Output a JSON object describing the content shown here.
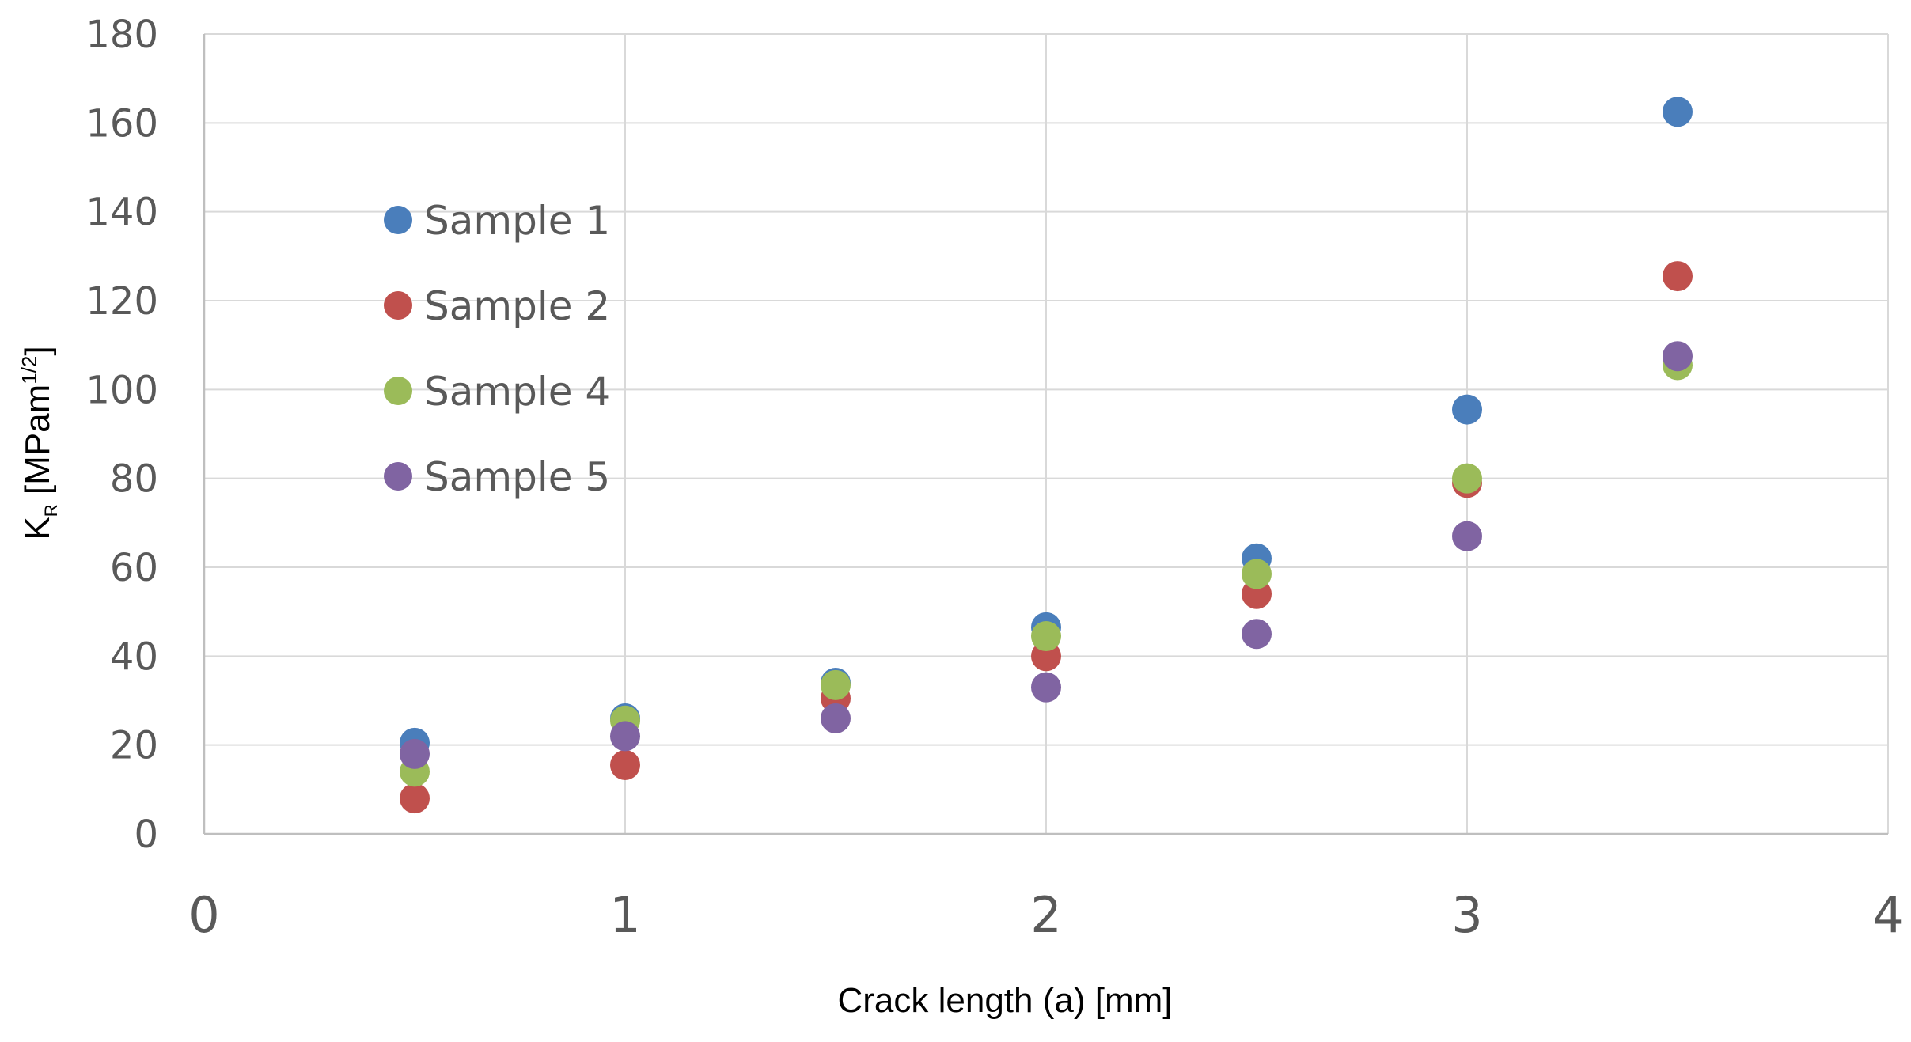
{
  "chart_data": {
    "type": "scatter",
    "xlabel": "Crack length (a) [mm]",
    "ylabel": {
      "main": "K",
      "subscript": "R",
      "unit_open": " [MPam",
      "unit_sup": "1/2",
      "unit_close": "]"
    },
    "xlim": [
      0,
      4
    ],
    "ylim": [
      0,
      180
    ],
    "x_ticks": [
      0,
      1,
      2,
      3,
      4
    ],
    "y_ticks": [
      0,
      20,
      40,
      60,
      80,
      100,
      120,
      140,
      160,
      180
    ],
    "grid": true,
    "legend_position": "upper-left",
    "series": [
      {
        "name": "Sample 1",
        "color": "#4a7ebb",
        "x": [
          0.5,
          1.0,
          1.5,
          2.0,
          2.5,
          3.0,
          3.5
        ],
        "y": [
          20.5,
          26,
          34,
          46.5,
          62,
          95.5,
          162.5
        ]
      },
      {
        "name": "Sample 2",
        "color": "#c0504d",
        "x": [
          0.5,
          1.0,
          1.5,
          2.0,
          2.5,
          3.0,
          3.5
        ],
        "y": [
          8,
          15.5,
          30.5,
          40,
          54,
          79,
          125.5
        ]
      },
      {
        "name": "Sample 4",
        "color": "#9bbb59",
        "x": [
          0.5,
          1.0,
          1.5,
          2.0,
          2.5,
          3.0,
          3.5
        ],
        "y": [
          14,
          25.5,
          33.5,
          44.5,
          58.5,
          80,
          105.5
        ]
      },
      {
        "name": "Sample 5",
        "color": "#8064a2",
        "x": [
          0.5,
          1.0,
          1.5,
          2.0,
          2.5,
          3.0,
          3.5
        ],
        "y": [
          18,
          22,
          26,
          33,
          45,
          67,
          107.5
        ]
      }
    ]
  }
}
